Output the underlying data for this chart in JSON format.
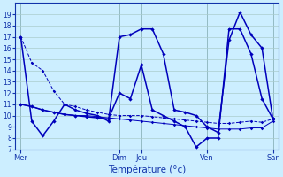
{
  "background_color": "#cceeff",
  "grid_color": "#aacccc",
  "line_color": "#0000bb",
  "xlabel": "Température (°c)",
  "ylim": [
    7,
    20
  ],
  "yticks": [
    7,
    8,
    9,
    10,
    11,
    12,
    13,
    14,
    15,
    16,
    17,
    18,
    19
  ],
  "day_labels": [
    "Mer",
    "Dim",
    "Jeu",
    "Ven",
    "Sar"
  ],
  "day_x": [
    0,
    9,
    11,
    17,
    23
  ],
  "xlim": [
    -0.3,
    24.5
  ],
  "s1_x": [
    0,
    1,
    2,
    3,
    4,
    5,
    6,
    7,
    8,
    9,
    10,
    11,
    12,
    13,
    14,
    15,
    16,
    17,
    18,
    19,
    20,
    21,
    22,
    23
  ],
  "s1_y": [
    17.0,
    14.7,
    14.0,
    12.2,
    11.0,
    10.8,
    10.5,
    10.3,
    10.1,
    10.0,
    10.0,
    10.0,
    9.9,
    9.8,
    9.7,
    9.6,
    9.5,
    9.4,
    9.3,
    9.3,
    9.4,
    9.5,
    9.4,
    9.7
  ],
  "s2_x": [
    0,
    1,
    2,
    3,
    4,
    5,
    6,
    7,
    8,
    9,
    10,
    11,
    12,
    13,
    14,
    15,
    16,
    17,
    18,
    19,
    20,
    21,
    22,
    23
  ],
  "s2_y": [
    11.0,
    10.8,
    10.5,
    10.3,
    10.1,
    10.0,
    10.0,
    9.9,
    9.8,
    9.7,
    9.6,
    9.5,
    9.4,
    9.3,
    9.2,
    9.1,
    9.0,
    8.9,
    8.8,
    8.8,
    8.8,
    8.9,
    8.9,
    9.5
  ],
  "s3_x": [
    0,
    1,
    2,
    3,
    4,
    5,
    6,
    7,
    8,
    9,
    10,
    11,
    12,
    13,
    14,
    15,
    16,
    17,
    18,
    19,
    20,
    21,
    22,
    23
  ],
  "s3_y": [
    17.0,
    9.5,
    8.2,
    9.5,
    11.0,
    10.5,
    10.2,
    10.0,
    9.5,
    17.0,
    17.2,
    17.7,
    17.7,
    15.5,
    10.5,
    10.3,
    10.0,
    9.0,
    8.5,
    16.7,
    19.2,
    17.2,
    16.0,
    9.7
  ],
  "s4_x": [
    0,
    1,
    2,
    3,
    4,
    5,
    6,
    7,
    8,
    9,
    10,
    11,
    12,
    13,
    14,
    15,
    16,
    17,
    18,
    19,
    20,
    21,
    22,
    23
  ],
  "s4_y": [
    11.0,
    10.8,
    10.5,
    10.3,
    10.1,
    10.0,
    9.9,
    9.8,
    9.7,
    12.0,
    11.5,
    14.5,
    10.5,
    10.0,
    9.5,
    9.0,
    7.2,
    8.0,
    8.0,
    17.7,
    17.7,
    15.5,
    11.5,
    9.7
  ]
}
